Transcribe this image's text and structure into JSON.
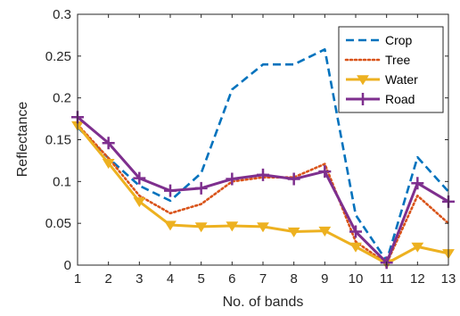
{
  "chart_data": {
    "type": "line",
    "title": "",
    "xlabel": "No. of bands",
    "ylabel": "Reflectance",
    "categories": [
      1,
      2,
      3,
      4,
      5,
      6,
      7,
      8,
      9,
      10,
      11,
      12,
      13
    ],
    "xlim": [
      1,
      13
    ],
    "ylim": [
      0,
      0.3
    ],
    "x_ticks": [
      "1",
      "2",
      "3",
      "4",
      "5",
      "6",
      "7",
      "8",
      "9",
      "10",
      "11",
      "12",
      "13"
    ],
    "y_ticks": [
      "0",
      "0.05",
      "0.1",
      "0.15",
      "0.2",
      "0.25",
      "0.3"
    ],
    "grid": false,
    "legend_position": "top-right",
    "series": [
      {
        "name": "Crop",
        "color": "#0072BD",
        "line_style": "dashed",
        "marker": "none",
        "values": [
          0.165,
          0.128,
          0.095,
          0.077,
          0.11,
          0.21,
          0.24,
          0.24,
          0.258,
          0.06,
          0.005,
          0.129,
          0.088
        ]
      },
      {
        "name": "Tree",
        "color": "#D95319",
        "line_style": "dotted",
        "marker": "none",
        "values": [
          0.168,
          0.128,
          0.083,
          0.062,
          0.073,
          0.1,
          0.105,
          0.105,
          0.121,
          0.028,
          0.002,
          0.083,
          0.05
        ]
      },
      {
        "name": "Water",
        "color": "#EDB120",
        "line_style": "solid",
        "marker": "triangle-down",
        "values": [
          0.167,
          0.122,
          0.076,
          0.048,
          0.046,
          0.047,
          0.046,
          0.04,
          0.041,
          0.022,
          0.002,
          0.022,
          0.014
        ]
      },
      {
        "name": "Road",
        "color": "#7E2F8E",
        "line_style": "solid",
        "marker": "plus",
        "values": [
          0.177,
          0.146,
          0.104,
          0.089,
          0.092,
          0.103,
          0.108,
          0.103,
          0.112,
          0.04,
          0.003,
          0.098,
          0.076
        ]
      }
    ]
  }
}
